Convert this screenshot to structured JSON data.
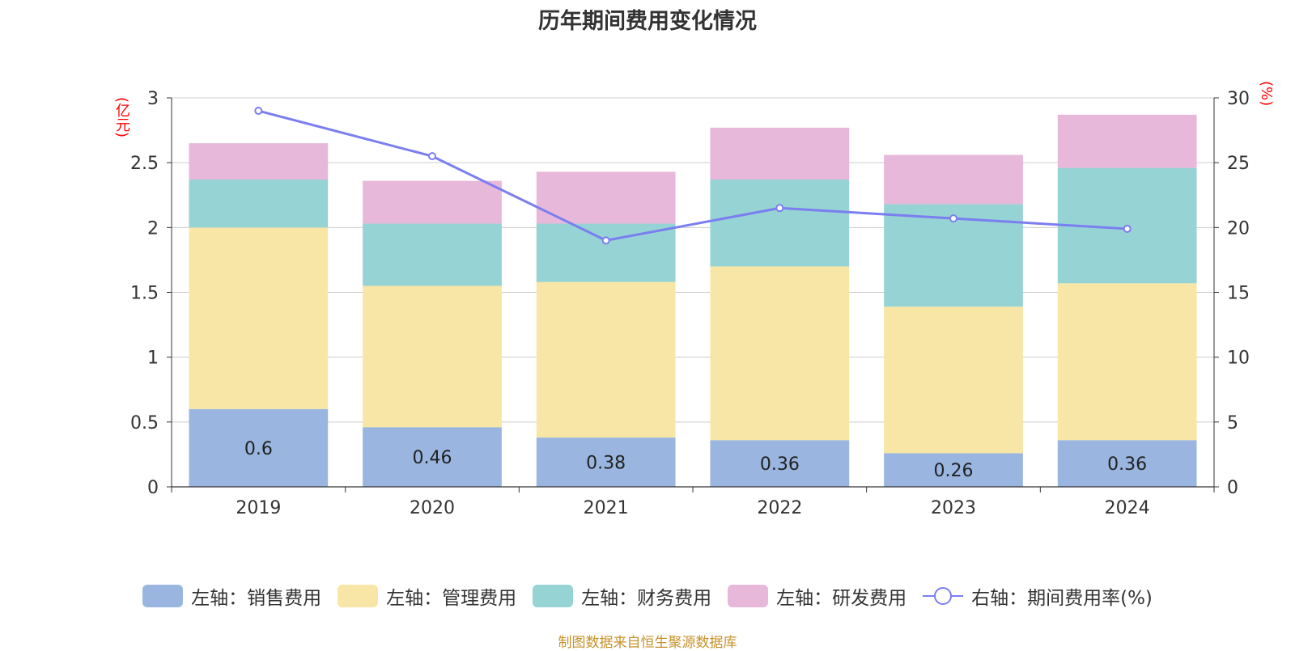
{
  "title": "历年期间费用变化情况",
  "left_unit": "(亿元)",
  "right_unit": "(%)",
  "source": "制图数据来自恒生聚源数据库",
  "chart_data": {
    "type": "bar",
    "stacked": true,
    "categories": [
      "2019",
      "2020",
      "2021",
      "2022",
      "2023",
      "2024"
    ],
    "series": [
      {
        "name": "左轴：销售费用",
        "axis": "left",
        "color": "#9ab6e0",
        "values": [
          0.6,
          0.46,
          0.38,
          0.36,
          0.26,
          0.36
        ],
        "labels": [
          "0.6",
          "0.46",
          "0.38",
          "0.36",
          "0.26",
          "0.36"
        ]
      },
      {
        "name": "左轴：管理费用",
        "axis": "left",
        "color": "#f7e6a6",
        "values": [
          1.4,
          1.09,
          1.2,
          1.34,
          1.13,
          1.21
        ]
      },
      {
        "name": "左轴：财务费用",
        "axis": "left",
        "color": "#96d3d4",
        "values": [
          0.37,
          0.48,
          0.45,
          0.67,
          0.79,
          0.89
        ]
      },
      {
        "name": "左轴：研发费用",
        "axis": "left",
        "color": "#e8b8da",
        "values": [
          0.28,
          0.33,
          0.4,
          0.4,
          0.38,
          0.41
        ]
      },
      {
        "name": "右轴：期间费用率(%)",
        "axis": "right",
        "type": "line",
        "color": "#7b7ef0",
        "values": [
          29.0,
          25.5,
          19.0,
          21.5,
          20.7,
          19.9
        ]
      }
    ],
    "left_axis": {
      "min": 0,
      "max": 3,
      "ticks": [
        "0",
        "0.5",
        "1",
        "1.5",
        "2",
        "2.5",
        "3"
      ]
    },
    "right_axis": {
      "min": 0,
      "max": 30,
      "ticks": [
        "0",
        "5",
        "10",
        "15",
        "20",
        "25",
        "30"
      ]
    },
    "grid": true,
    "legend_position": "bottom"
  }
}
